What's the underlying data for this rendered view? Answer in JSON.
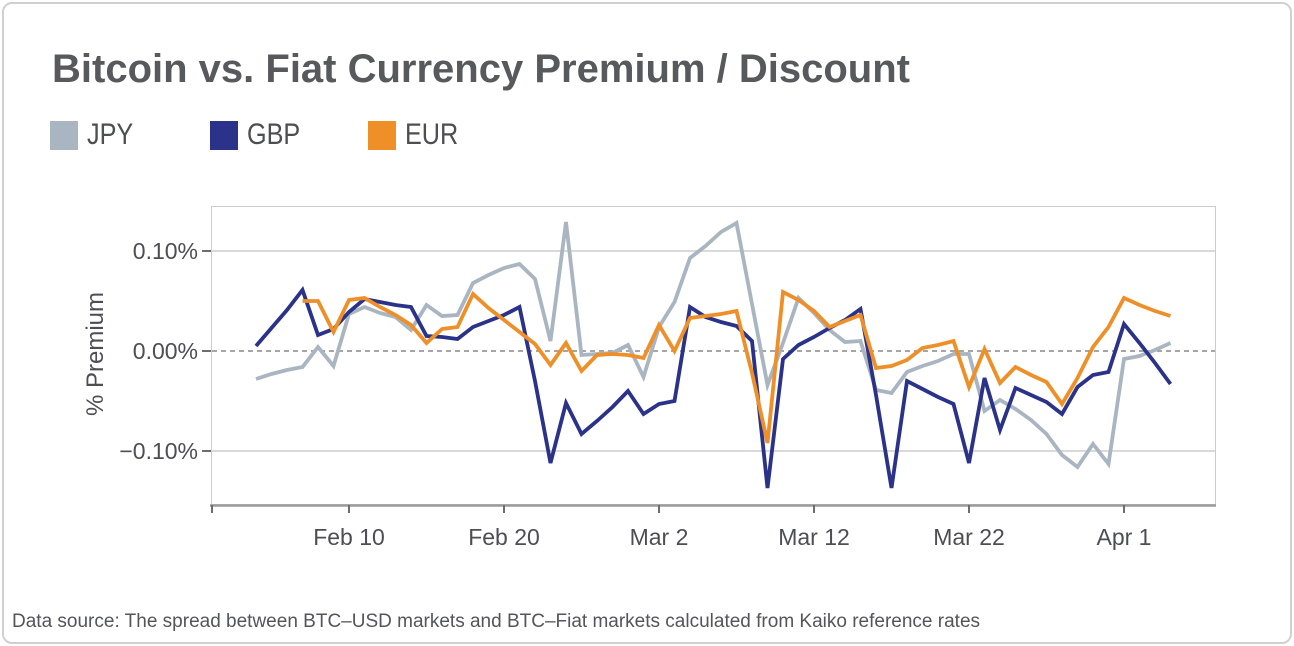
{
  "title": "Bitcoin vs. Fiat Currency Premium / Discount",
  "legend": [
    {
      "label": "JPY",
      "color": "#aab5c2"
    },
    {
      "label": "GBP",
      "color": "#2a3289"
    },
    {
      "label": "EUR",
      "color": "#ef8f28"
    }
  ],
  "footer": {
    "text": "Data source: The spread between BTC–USD markets and BTC–Fiat markets calculated from Kaiko reference rates"
  },
  "chart_data": {
    "type": "line",
    "title": "Bitcoin vs. Fiat Currency Premium / Discount",
    "xlabel": "",
    "ylabel": "% Premium",
    "ylim": [
      -0.155,
      0.145
    ],
    "grid": "horizontal",
    "zero_line": "dashed",
    "y_ticks": [
      {
        "label": "0.10%",
        "value": 0.1
      },
      {
        "label": "0.00%",
        "value": 0.0
      },
      {
        "label": "−0.10%",
        "value": -0.1
      }
    ],
    "x_ticks": [
      {
        "label": "Feb 10",
        "day": 6
      },
      {
        "label": "Feb 20",
        "day": 16
      },
      {
        "label": "Mar 2",
        "day": 26
      },
      {
        "label": "Mar 12",
        "day": 36
      },
      {
        "label": "Mar 22",
        "day": 46
      },
      {
        "label": "Apr 1",
        "day": 56
      }
    ],
    "unit": "percent",
    "series": [
      {
        "name": "JPY",
        "color": "#aab5c2",
        "values": [
          -0.028,
          -0.023,
          -0.019,
          -0.016,
          0.004,
          -0.015,
          0.037,
          0.044,
          0.038,
          0.034,
          0.021,
          0.046,
          0.035,
          0.036,
          0.068,
          0.076,
          0.083,
          0.087,
          0.072,
          0.01,
          0.129,
          -0.004,
          -0.003,
          -0.002,
          0.006,
          -0.026,
          0.024,
          0.049,
          0.093,
          0.105,
          0.119,
          0.128,
          0.047,
          -0.034,
          0.008,
          0.053,
          0.038,
          0.021,
          0.009,
          0.01,
          -0.039,
          -0.042,
          -0.021,
          -0.015,
          -0.01,
          -0.003,
          -0.003,
          -0.06,
          -0.049,
          -0.058,
          -0.069,
          -0.083,
          -0.104,
          -0.116,
          -0.093,
          -0.113,
          -0.008,
          -0.005,
          0.001,
          0.008
        ]
      },
      {
        "name": "GBP",
        "color": "#2a3289",
        "values": [
          0.005,
          0.023,
          0.041,
          0.061,
          0.016,
          0.022,
          0.039,
          0.052,
          0.049,
          0.046,
          0.044,
          0.015,
          0.014,
          0.012,
          0.024,
          0.03,
          0.036,
          0.044,
          -0.03,
          -0.112,
          -0.052,
          -0.083,
          -0.07,
          -0.056,
          -0.04,
          -0.063,
          -0.053,
          -0.05,
          0.044,
          0.034,
          0.029,
          0.025,
          0.01,
          -0.137,
          -0.008,
          0.006,
          0.014,
          0.023,
          0.031,
          0.042,
          -0.044,
          -0.137,
          -0.03,
          -0.038,
          -0.046,
          -0.053,
          -0.112,
          -0.027,
          -0.079,
          -0.037,
          -0.044,
          -0.051,
          -0.063,
          -0.036,
          -0.024,
          -0.021,
          0.027,
          0.008,
          -0.012,
          -0.033
        ]
      },
      {
        "name": "EUR",
        "color": "#ef8f28",
        "values": [
          null,
          null,
          null,
          0.05,
          0.05,
          0.019,
          0.051,
          0.053,
          0.044,
          0.036,
          0.026,
          0.008,
          0.022,
          0.024,
          0.057,
          0.043,
          0.031,
          0.019,
          0.007,
          -0.014,
          0.008,
          -0.02,
          -0.004,
          -0.003,
          -0.004,
          -0.007,
          0.026,
          0.0,
          0.033,
          0.035,
          0.037,
          0.04,
          -0.022,
          -0.092,
          0.059,
          0.051,
          0.04,
          0.024,
          0.03,
          0.036,
          -0.017,
          -0.015,
          -0.009,
          0.003,
          0.006,
          0.01,
          -0.036,
          0.002,
          -0.032,
          -0.016,
          -0.024,
          -0.031,
          -0.053,
          -0.027,
          0.004,
          0.024,
          0.053,
          0.046,
          0.04,
          0.035
        ]
      }
    ]
  }
}
